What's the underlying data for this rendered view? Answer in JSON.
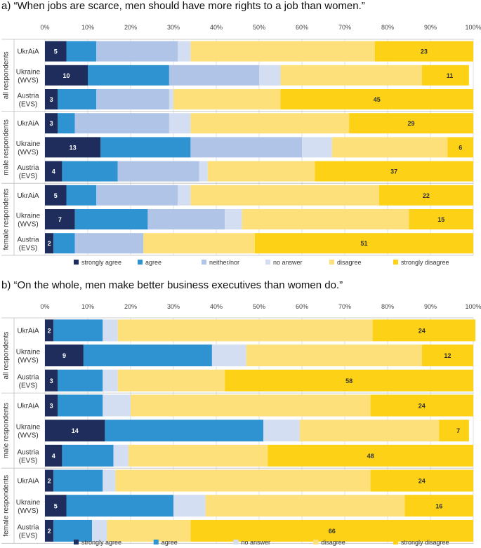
{
  "colors": {
    "strongly_agree": "#1f2d5c",
    "agree": "#2f93d2",
    "neither_nor": "#afc4e6",
    "no_answer": "#d3def2",
    "disagree": "#fde07a",
    "strongly_disagree": "#fcd116"
  },
  "chart_data": [
    {
      "type": "bar",
      "orientation": "horizontal-stacked",
      "title": "a) “When jobs are scarce, men should have more rights to a job than women.”",
      "xlim": [
        0,
        100
      ],
      "x_ticks": [
        "0%",
        "10%",
        "20%",
        "30%",
        "40%",
        "50%",
        "60%",
        "70%",
        "80%",
        "90%",
        "100%"
      ],
      "groups": [
        {
          "label": "all respondents",
          "rows": [
            0,
            1,
            2
          ]
        },
        {
          "label": "male respondents",
          "rows": [
            3,
            4,
            5
          ]
        },
        {
          "label": "female respondents",
          "rows": [
            6,
            7,
            8
          ]
        }
      ],
      "categories": [
        "UkrAiA",
        "Ukraine (WVS)",
        "Austria (EVS)",
        "UkrAiA",
        "Ukraine (WVS)",
        "Austria (EVS)",
        "UkrAiA",
        "Ukraine (WVS)",
        "Austria (EVS)"
      ],
      "legend": [
        "strongly agree",
        "agree",
        "neither/nor",
        "no answer",
        "disagree",
        "strongly disagree"
      ],
      "series": [
        {
          "name": "strongly agree",
          "color_key": "strongly_agree",
          "values": [
            5,
            10,
            3,
            3,
            13,
            4,
            5,
            7,
            2
          ]
        },
        {
          "name": "agree",
          "color_key": "agree",
          "values": [
            7,
            19,
            9,
            4,
            21,
            13,
            7,
            17,
            5
          ]
        },
        {
          "name": "neither/nor",
          "color_key": "neither_nor",
          "values": [
            19,
            21,
            17,
            22,
            26,
            19,
            19,
            18,
            16
          ]
        },
        {
          "name": "no answer",
          "color_key": "no_answer",
          "values": [
            3,
            5,
            1,
            5,
            7,
            2,
            3,
            4,
            0
          ]
        },
        {
          "name": "disagree",
          "color_key": "disagree",
          "values": [
            43,
            33,
            25,
            37,
            27,
            25,
            44,
            39,
            26
          ]
        },
        {
          "name": "strongly disagree",
          "color_key": "strongly_disagree",
          "values": [
            23,
            11,
            45,
            29,
            6,
            37,
            22,
            15,
            51
          ]
        }
      ],
      "data_labels": [
        {
          "left": "5",
          "right": "23"
        },
        {
          "left": "10",
          "right": "11"
        },
        {
          "left": "3",
          "right": "45"
        },
        {
          "left": "3",
          "right": "29"
        },
        {
          "left": "13",
          "right": "6"
        },
        {
          "left": "4",
          "right": "37"
        },
        {
          "left": "5",
          "right": "22"
        },
        {
          "left": "7",
          "right": "15"
        },
        {
          "left": "2",
          "right": "51"
        }
      ]
    },
    {
      "type": "bar",
      "orientation": "horizontal-stacked",
      "title": "b) “On the whole, men make better business executives than women do.”",
      "xlim": [
        0,
        100
      ],
      "x_ticks": [
        "0%",
        "10%",
        "20%",
        "30%",
        "40%",
        "50%",
        "60%",
        "70%",
        "80%",
        "90%",
        "100%"
      ],
      "groups": [
        {
          "label": "all respondents",
          "rows": [
            0,
            1,
            2
          ]
        },
        {
          "label": "male respondents",
          "rows": [
            3,
            4,
            5
          ]
        },
        {
          "label": "female respondents",
          "rows": [
            6,
            7,
            8
          ]
        }
      ],
      "categories": [
        "UkrAiA",
        "Ukraine (WVS)",
        "Austria (EVS)",
        "UkrAiA",
        "Ukraine (WVS)",
        "Austria (EVS)",
        "UkrAiA",
        "Ukraine (WVS)",
        "Austria (EVS)"
      ],
      "legend": [
        "strongly agree",
        "agree",
        "no answer",
        "disagree",
        "strongly disagree"
      ],
      "series": [
        {
          "name": "strongly agree",
          "color_key": "strongly_agree",
          "values": [
            2,
            9,
            3,
            3,
            14,
            4,
            2,
            5,
            2
          ]
        },
        {
          "name": "agree",
          "color_key": "agree",
          "values": [
            11.5,
            30,
            10.5,
            10.5,
            37,
            12,
            11.5,
            25,
            9
          ]
        },
        {
          "name": "no answer",
          "color_key": "no_answer",
          "values": [
            3.5,
            8,
            3.5,
            6.5,
            8.5,
            3.5,
            3,
            7.5,
            3.5
          ]
        },
        {
          "name": "disagree",
          "color_key": "disagree",
          "values": [
            59.5,
            41,
            25,
            56,
            32.5,
            32.5,
            59.5,
            46.5,
            19.5
          ]
        },
        {
          "name": "strongly disagree",
          "color_key": "strongly_disagree",
          "values": [
            24,
            12,
            58,
            24,
            7,
            48,
            24,
            16,
            66
          ]
        }
      ],
      "data_labels": [
        {
          "left": "2",
          "right": "24"
        },
        {
          "left": "9",
          "right": "12"
        },
        {
          "left": "3",
          "right": "58"
        },
        {
          "left": "3",
          "right": "24"
        },
        {
          "left": "14",
          "right": "7"
        },
        {
          "left": "4",
          "right": "48"
        },
        {
          "left": "2",
          "right": "24"
        },
        {
          "left": "5",
          "right": "16"
        },
        {
          "left": "2",
          "right": "66"
        }
      ]
    }
  ]
}
